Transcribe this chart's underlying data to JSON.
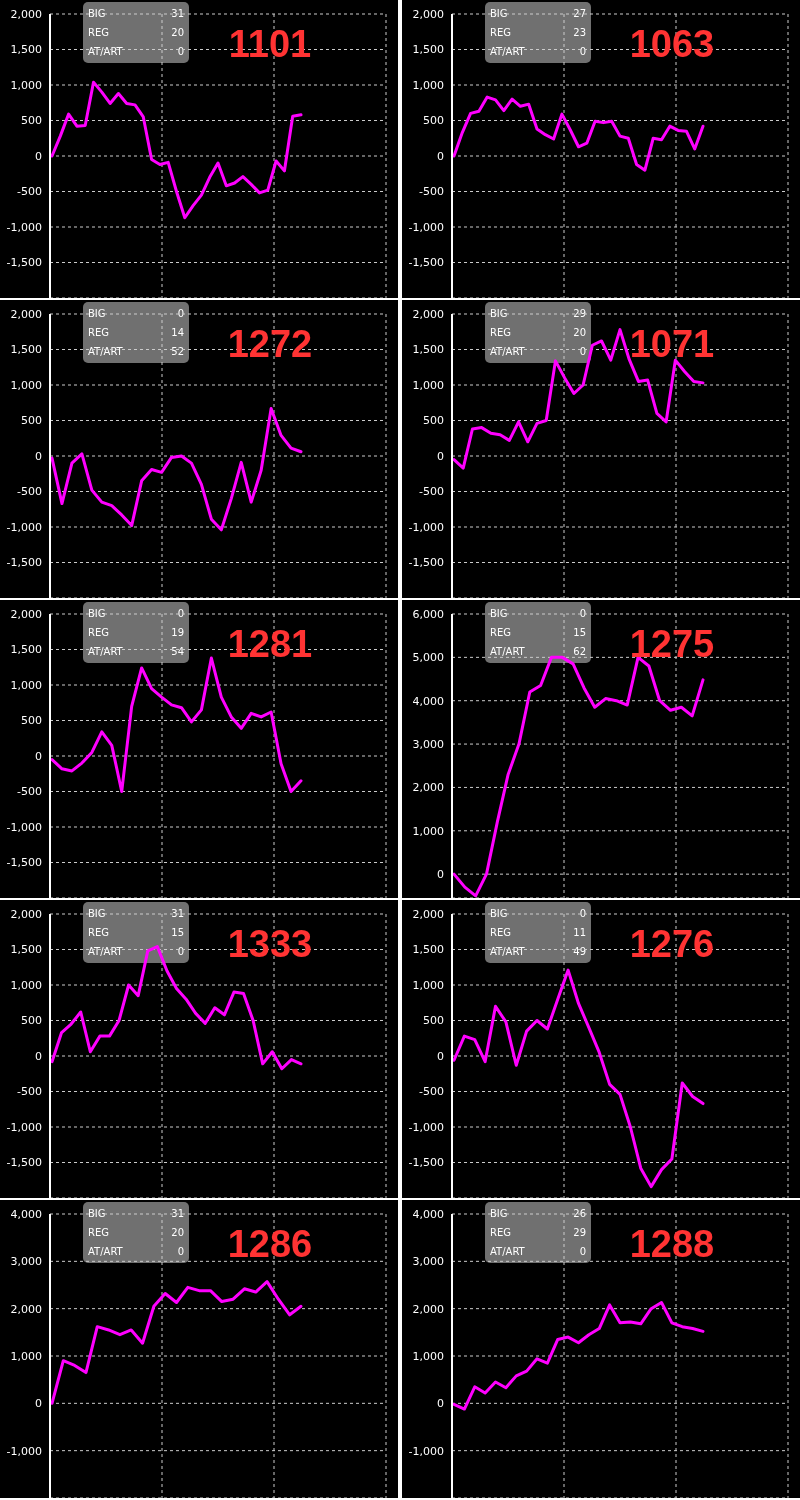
{
  "chart_data": [
    {
      "type": "line",
      "title": "1101",
      "annotations": [
        "BIG",
        "31",
        "REG",
        "20",
        "AT/ART",
        "0"
      ],
      "categories": [
        null,
        null,
        null,
        null,
        null,
        null,
        null,
        null,
        null,
        null,
        null,
        null,
        null,
        null,
        null,
        null,
        null,
        null,
        null,
        null,
        null,
        null,
        null,
        null,
        null,
        null,
        null,
        null,
        null,
        null,
        null
      ],
      "values": [
        0,
        280,
        590,
        420,
        430,
        1040,
        900,
        740,
        880,
        740,
        720,
        550,
        -50,
        -120,
        -90,
        -500,
        -870,
        -700,
        -550,
        -300,
        -100,
        -420,
        -380,
        -290,
        -400,
        -520,
        -480,
        -70,
        -210,
        560,
        580
      ],
      "color": "#ff00ff",
      "ylim": [
        -2000,
        2000
      ],
      "yticks": [
        {
          "value": -1500,
          "label": "-1,500"
        },
        {
          "value": -1000,
          "label": "-1,000"
        },
        -500,
        0,
        500,
        {
          "value": 1000,
          "label": "1,000"
        },
        {
          "value": 1500,
          "label": "1,500"
        },
        {
          "value": 2000,
          "label": "2,000"
        }
      ],
      "grid": true,
      "tick_labels": "y"
    },
    {
      "type": "line",
      "title": "1063",
      "annotations": [
        "BIG",
        "27",
        "REG",
        "23",
        "AT/ART",
        "0"
      ],
      "categories": [
        null,
        null,
        null,
        null,
        null,
        null,
        null,
        null,
        null,
        null,
        null,
        null,
        null,
        null,
        null,
        null,
        null,
        null,
        null,
        null,
        null,
        null,
        null,
        null,
        null,
        null,
        null,
        null,
        null,
        null,
        null
      ],
      "values": [
        0,
        330,
        600,
        630,
        830,
        790,
        640,
        800,
        700,
        730,
        380,
        300,
        240,
        590,
        370,
        130,
        180,
        490,
        470,
        490,
        280,
        250,
        -120,
        -200,
        250,
        230,
        420,
        360,
        350,
        100,
        420
      ],
      "color": "#ff00ff",
      "ylim": [
        -2000,
        2000
      ],
      "yticks": [
        {
          "value": -1500,
          "label": "-1,500"
        },
        {
          "value": -1000,
          "label": "-1,000"
        },
        -500,
        0,
        500,
        {
          "value": 1000,
          "label": "1,000"
        },
        {
          "value": 1500,
          "label": "1,500"
        },
        {
          "value": 2000,
          "label": "2,000"
        }
      ],
      "grid": true,
      "tick_labels": "y"
    },
    {
      "type": "line",
      "title": "1272",
      "annotations": [
        "BIG",
        "0",
        "REG",
        "14",
        "AT/ART",
        "52"
      ],
      "categories": [
        null,
        null,
        null,
        null,
        null,
        null,
        null,
        null,
        null,
        null,
        null,
        null,
        null,
        null,
        null,
        null,
        null,
        null,
        null,
        null,
        null,
        null,
        null,
        null,
        null,
        null
      ],
      "values": [
        -30,
        -670,
        -100,
        30,
        -480,
        -650,
        -700,
        -830,
        -980,
        -350,
        -190,
        -230,
        -20,
        0,
        -100,
        -400,
        -890,
        -1040,
        -600,
        -90,
        -650,
        -200,
        670,
        290,
        110,
        60
      ],
      "color": "#ff00ff",
      "ylim": [
        -2000,
        2000
      ],
      "yticks": [
        {
          "value": -1500,
          "label": "-1,500"
        },
        {
          "value": -1000,
          "label": "-1,000"
        },
        -500,
        0,
        500,
        {
          "value": 1000,
          "label": "1,000"
        },
        {
          "value": 1500,
          "label": "1,500"
        },
        {
          "value": 2000,
          "label": "2,000"
        }
      ],
      "grid": true,
      "tick_labels": "y"
    },
    {
      "type": "line",
      "title": "1071",
      "annotations": [
        "BIG",
        "29",
        "REG",
        "20",
        "AT/ART",
        "0"
      ],
      "categories": [
        null,
        null,
        null,
        null,
        null,
        null,
        null,
        null,
        null,
        null,
        null,
        null,
        null,
        null,
        null,
        null,
        null,
        null,
        null,
        null,
        null,
        null,
        null,
        null,
        null,
        null,
        null,
        null
      ],
      "values": [
        -50,
        -170,
        380,
        400,
        320,
        300,
        220,
        480,
        200,
        460,
        500,
        1340,
        1100,
        880,
        1000,
        1560,
        1620,
        1350,
        1780,
        1360,
        1050,
        1070,
        600,
        480,
        1350,
        1190,
        1050,
        1030
      ],
      "color": "#ff00ff",
      "ylim": [
        -2000,
        2000
      ],
      "yticks": [
        {
          "value": -1500,
          "label": "-1,500"
        },
        {
          "value": -1000,
          "label": "-1,000"
        },
        -500,
        0,
        500,
        {
          "value": 1000,
          "label": "1,000"
        },
        {
          "value": 1500,
          "label": "1,500"
        },
        {
          "value": 2000,
          "label": "2,000"
        }
      ],
      "grid": true,
      "tick_labels": "y"
    },
    {
      "type": "line",
      "title": "1281",
      "annotations": [
        "BIG",
        "0",
        "REG",
        "19",
        "AT/ART",
        "54"
      ],
      "categories": [
        null,
        null,
        null,
        null,
        null,
        null,
        null,
        null,
        null,
        null,
        null,
        null,
        null,
        null,
        null,
        null,
        null,
        null,
        null,
        null,
        null,
        null,
        null,
        null,
        null,
        null
      ],
      "values": [
        -50,
        -180,
        -210,
        -100,
        50,
        340,
        150,
        -500,
        700,
        1240,
        950,
        830,
        720,
        680,
        480,
        650,
        1380,
        830,
        550,
        390,
        600,
        550,
        620,
        -110,
        -500,
        -350
      ],
      "color": "#ff00ff",
      "ylim": [
        -2000,
        2000
      ],
      "yticks": [
        {
          "value": -1500,
          "label": "-1,500"
        },
        {
          "value": -1000,
          "label": "-1,000"
        },
        -500,
        0,
        500,
        {
          "value": 1000,
          "label": "1,000"
        },
        {
          "value": 1500,
          "label": "1,500"
        },
        {
          "value": 2000,
          "label": "2,000"
        }
      ],
      "grid": true,
      "tick_labels": "y"
    },
    {
      "type": "line",
      "title": "1275",
      "annotations": [
        "BIG",
        "0",
        "REG",
        "15",
        "AT/ART",
        "62"
      ],
      "categories": [
        null,
        null,
        null,
        null,
        null,
        null,
        null,
        null,
        null,
        null,
        null,
        null,
        null,
        null,
        null,
        null,
        null,
        null,
        null,
        null,
        null,
        null,
        null,
        null
      ],
      "values": [
        0,
        -300,
        -500,
        0,
        1200,
        2300,
        3000,
        4200,
        4350,
        5000,
        5000,
        4850,
        4300,
        3850,
        4050,
        4000,
        3900,
        5000,
        4800,
        4000,
        3780,
        3850,
        3650,
        4480
      ],
      "color": "#ff00ff",
      "ylim": [
        -550,
        6000
      ],
      "yticks": [
        0,
        {
          "value": 1000,
          "label": "1,000"
        },
        {
          "value": 2000,
          "label": "2,000"
        },
        {
          "value": 3000,
          "label": "3,000"
        },
        {
          "value": 4000,
          "label": "4,000"
        },
        {
          "value": 5000,
          "label": "5,000"
        },
        {
          "value": 6000,
          "label": "6,000"
        }
      ],
      "grid": true,
      "tick_labels": "y"
    },
    {
      "type": "line",
      "title": "1333",
      "annotations": [
        "BIG",
        "31",
        "REG",
        "15",
        "AT/ART",
        "0"
      ],
      "categories": [
        null,
        null,
        null,
        null,
        null,
        null,
        null,
        null,
        null,
        null,
        null,
        null,
        null,
        null,
        null,
        null,
        null,
        null,
        null,
        null,
        null,
        null,
        null,
        null,
        null,
        null,
        null
      ],
      "values": [
        -80,
        330,
        450,
        620,
        60,
        280,
        280,
        500,
        1000,
        850,
        1480,
        1540,
        1200,
        950,
        800,
        600,
        460,
        680,
        580,
        900,
        880,
        500,
        -110,
        60,
        -180,
        -50,
        -110
      ],
      "color": "#ff00ff",
      "ylim": [
        -2000,
        2000
      ],
      "yticks": [
        {
          "value": -1500,
          "label": "-1,500"
        },
        {
          "value": -1000,
          "label": "-1,000"
        },
        -500,
        0,
        500,
        {
          "value": 1000,
          "label": "1,000"
        },
        {
          "value": 1500,
          "label": "1,500"
        },
        {
          "value": 2000,
          "label": "2,000"
        }
      ],
      "grid": true,
      "tick_labels": "y"
    },
    {
      "type": "line",
      "title": "1276",
      "annotations": [
        "BIG",
        "0",
        "REG",
        "11",
        "AT/ART",
        "49"
      ],
      "categories": [
        null,
        null,
        null,
        null,
        null,
        null,
        null,
        null,
        null,
        null,
        null,
        null,
        null,
        null,
        null,
        null,
        null,
        null,
        null,
        null,
        null,
        null,
        null,
        null,
        null
      ],
      "values": [
        -60,
        280,
        230,
        -80,
        700,
        480,
        -130,
        350,
        500,
        380,
        800,
        1210,
        740,
        400,
        50,
        -400,
        -540,
        -1000,
        -1580,
        -1840,
        -1600,
        -1450,
        -380,
        -570,
        -670
      ],
      "color": "#ff00ff",
      "ylim": [
        -2000,
        2000
      ],
      "yticks": [
        {
          "value": -1500,
          "label": "-1,500"
        },
        {
          "value": -1000,
          "label": "-1,000"
        },
        -500,
        0,
        500,
        {
          "value": 1000,
          "label": "1,000"
        },
        {
          "value": 1500,
          "label": "1,500"
        },
        {
          "value": 2000,
          "label": "2,000"
        }
      ],
      "grid": true,
      "tick_labels": "y"
    },
    {
      "type": "line",
      "title": "1286",
      "annotations": [
        "BIG",
        "31",
        "REG",
        "20",
        "AT/ART",
        "0"
      ],
      "categories": [
        null,
        null,
        null,
        null,
        null,
        null,
        null,
        null,
        null,
        null,
        null,
        null,
        null,
        null,
        null,
        null,
        null,
        null,
        null,
        null,
        null,
        null,
        null
      ],
      "values": [
        0,
        900,
        800,
        650,
        1620,
        1550,
        1450,
        1550,
        1270,
        2050,
        2320,
        2130,
        2450,
        2380,
        2380,
        2150,
        2200,
        2420,
        2350,
        2570,
        2200,
        1870,
        2050
      ],
      "color": "#ff00ff",
      "ylim": [
        -2000,
        4000
      ],
      "yticks": [
        {
          "value": -1000,
          "label": "-1,000"
        },
        0,
        {
          "value": 1000,
          "label": "1,000"
        },
        {
          "value": 2000,
          "label": "2,000"
        },
        {
          "value": 3000,
          "label": "3,000"
        },
        {
          "value": 4000,
          "label": "4,000"
        }
      ],
      "grid": true,
      "tick_labels": "y"
    },
    {
      "type": "line",
      "title": "1288",
      "annotations": [
        "BIG",
        "26",
        "REG",
        "29",
        "AT/ART",
        "0"
      ],
      "categories": [
        null,
        null,
        null,
        null,
        null,
        null,
        null,
        null,
        null,
        null,
        null,
        null,
        null,
        null,
        null,
        null,
        null,
        null,
        null,
        null,
        null,
        null,
        null,
        null,
        null
      ],
      "values": [
        -20,
        -120,
        350,
        220,
        450,
        330,
        580,
        680,
        940,
        850,
        1350,
        1400,
        1280,
        1450,
        1580,
        2080,
        1700,
        1720,
        1680,
        2000,
        2130,
        1700,
        1620,
        1580,
        1520
      ],
      "color": "#ff00ff",
      "ylim": [
        -2000,
        4000
      ],
      "yticks": [
        {
          "value": -1000,
          "label": "-1,000"
        },
        0,
        {
          "value": 1000,
          "label": "1,000"
        },
        {
          "value": 2000,
          "label": "2,000"
        },
        {
          "value": 3000,
          "label": "3,000"
        },
        {
          "value": 4000,
          "label": "4,000"
        }
      ],
      "grid": true,
      "tick_labels": "y"
    }
  ]
}
